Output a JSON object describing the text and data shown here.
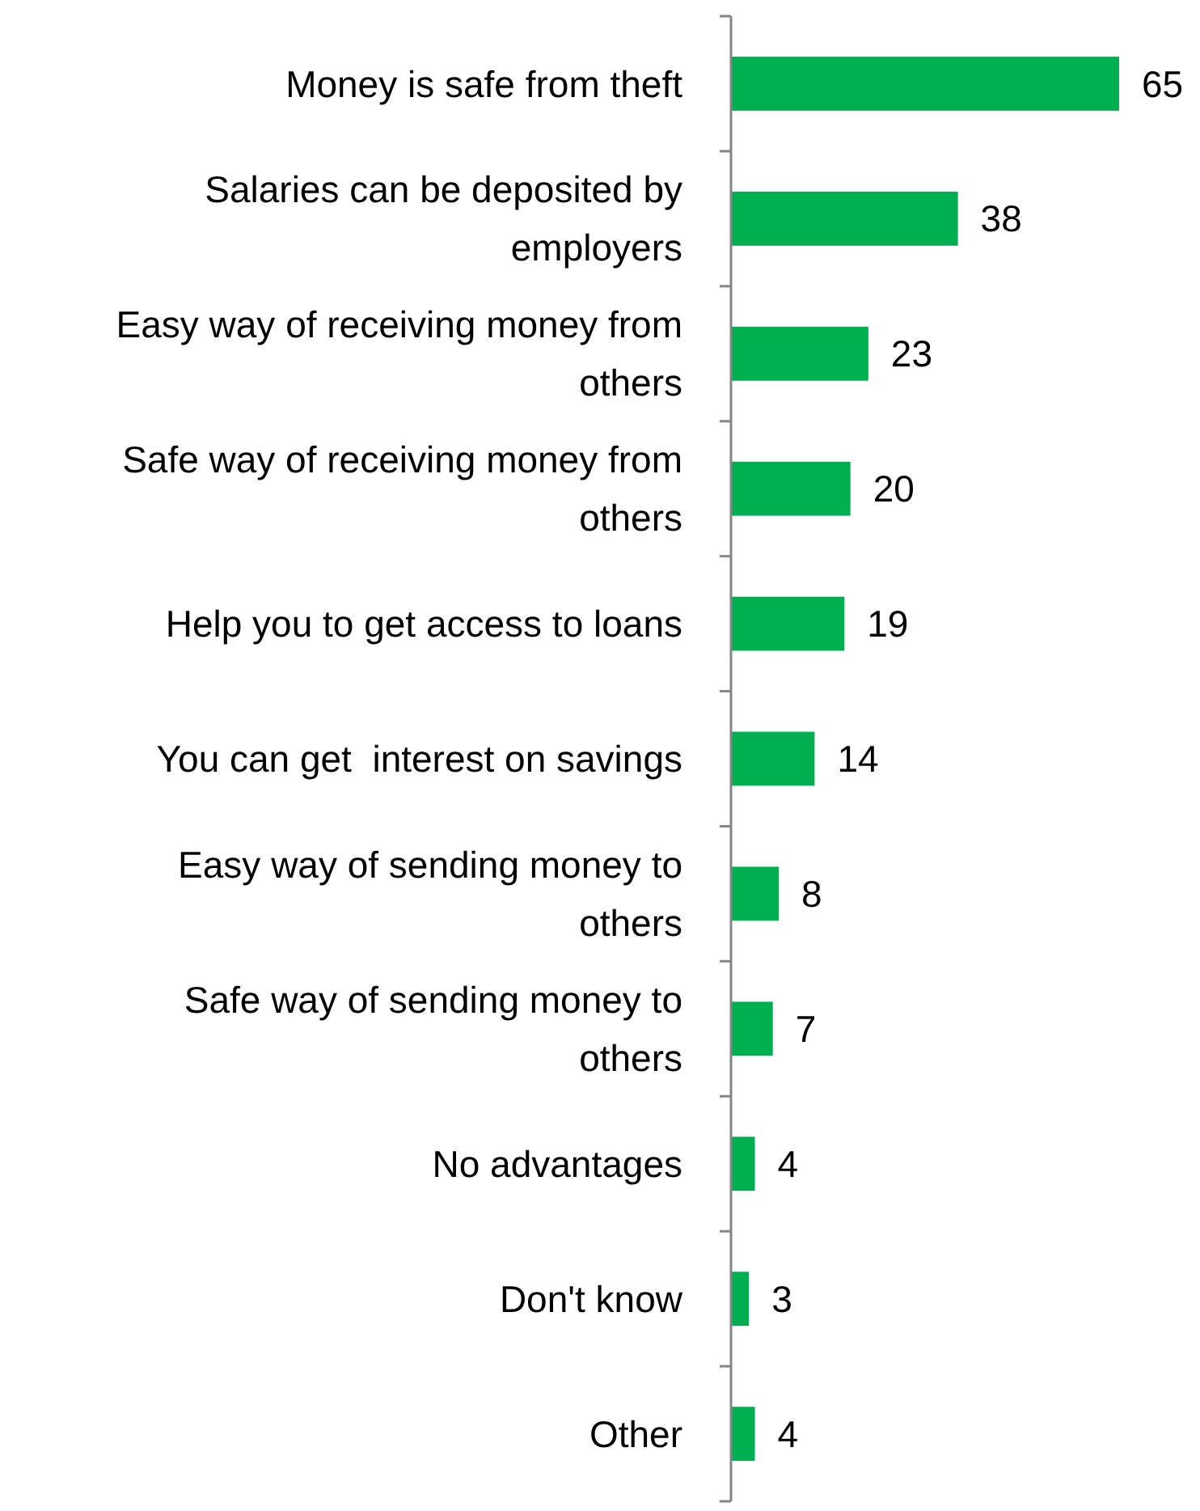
{
  "chart_data": {
    "type": "bar",
    "orientation": "horizontal",
    "data_labels": true,
    "color": "#00b050",
    "categories": [
      "Money is safe from theft",
      "Salaries can be deposited by employers",
      "Easy way of receiving money from others",
      "Safe way of receiving money from others",
      "Help you to get access to loans",
      "You can get  interest on savings",
      "Easy way of sending money to others",
      "Safe way of sending money to others",
      "No advantages",
      "Don't know",
      "Other"
    ],
    "values": [
      65,
      38,
      23,
      20,
      19,
      14,
      8,
      7,
      4,
      3,
      4
    ]
  }
}
